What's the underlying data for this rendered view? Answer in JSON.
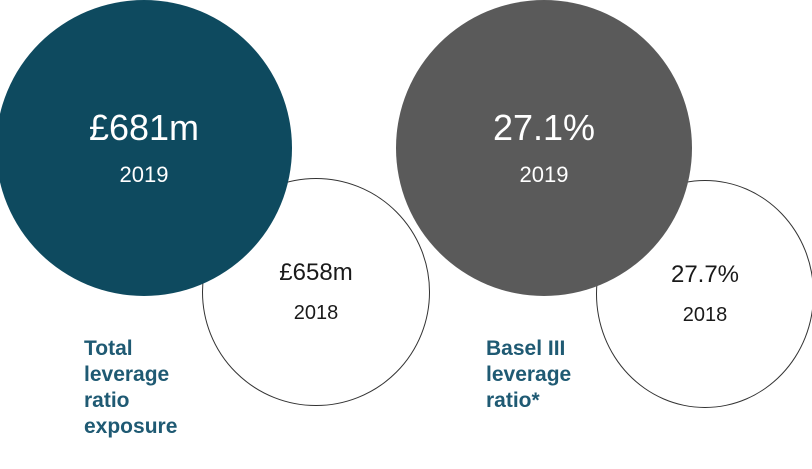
{
  "colors": {
    "teal": "#0e4a5f",
    "grey": "#5a5a5a",
    "label": "#1f5a73",
    "outline": "#333333"
  },
  "chart_data": [
    {
      "type": "bubble-comparison",
      "label_lines": [
        "Total",
        "leverage",
        "ratio",
        "exposure"
      ],
      "points": [
        {
          "year": "2019",
          "value_text": "£681m",
          "value": 681,
          "unit": "£m"
        },
        {
          "year": "2018",
          "value_text": "£658m",
          "value": 658,
          "unit": "£m"
        }
      ]
    },
    {
      "type": "bubble-comparison",
      "label_lines": [
        "Basel III",
        "leverage",
        "ratio*"
      ],
      "points": [
        {
          "year": "2019",
          "value_text": "27.1%",
          "value": 27.1,
          "unit": "%"
        },
        {
          "year": "2018",
          "value_text": "27.7%",
          "value": 27.7,
          "unit": "%"
        }
      ]
    }
  ]
}
